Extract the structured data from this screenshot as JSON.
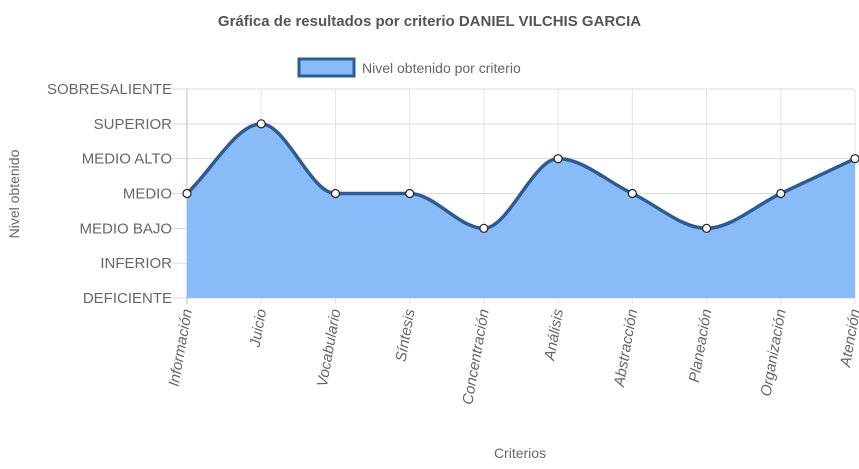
{
  "chart_data": {
    "type": "area",
    "title": "Gráfica de resultados por criterio DANIEL VILCHIS GARCIA",
    "xlabel": "Criterios",
    "ylabel": "Nivel obtenido",
    "levels": [
      "DEFICIENTE",
      "INFERIOR",
      "MEDIO BAJO",
      "MEDIO",
      "MEDIO ALTO",
      "SUPERIOR",
      "SOBRESALIENTE"
    ],
    "ylim": [
      0,
      6
    ],
    "categories": [
      "Información",
      "Juicio",
      "Vocabulario",
      "Síntesis",
      "Concentración",
      "Análisis",
      "Abstracción",
      "Planeación",
      "Organización",
      "Atención"
    ],
    "series": [
      {
        "name": "Nivel obtenido por criterio",
        "values": [
          3,
          5,
          3,
          3,
          2,
          4,
          3,
          2,
          3,
          4
        ],
        "fill_color": "#88bbf7",
        "line_color": "#2e5b94"
      }
    ],
    "legend_position": "top",
    "grid": true
  }
}
